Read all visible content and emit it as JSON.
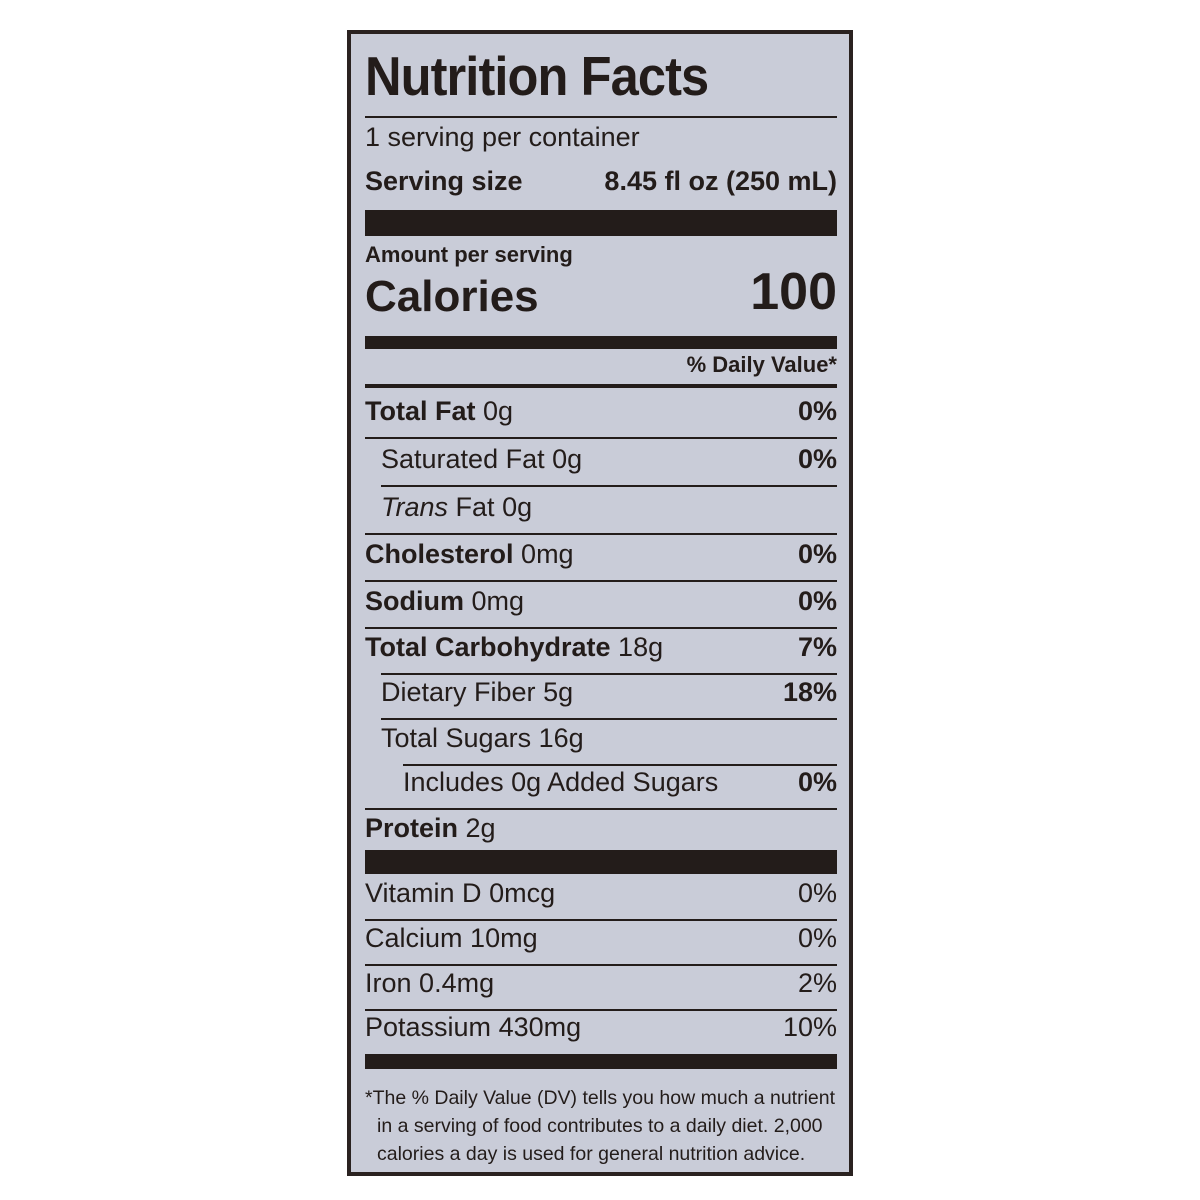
{
  "title": "Nutrition Facts",
  "servings_per_container": "1 serving per container",
  "serving_size": {
    "label": "Serving size",
    "value": "8.45 fl oz (250 mL)"
  },
  "amount_per_serving": "Amount per serving",
  "calories": {
    "label": "Calories",
    "value": "100"
  },
  "daily_value_header": "% Daily Value*",
  "nutrients": [
    {
      "label": "Total Fat",
      "amount": "0g",
      "dv": "0%"
    },
    {
      "label": "Saturated Fat",
      "amount": "0g",
      "dv": "0%"
    },
    {
      "label": "Trans",
      "label_suffix": "Fat",
      "amount": "0g",
      "dv": ""
    },
    {
      "label": "Cholesterol",
      "amount": "0mg",
      "dv": "0%"
    },
    {
      "label": "Sodium",
      "amount": "0mg",
      "dv": "0%"
    },
    {
      "label": "Total Carbohydrate",
      "amount": "18g",
      "dv": "7%"
    },
    {
      "label": "Dietary Fiber",
      "amount": "5g",
      "dv": "18%"
    },
    {
      "label": "Total Sugars",
      "amount": "16g",
      "dv": ""
    },
    {
      "label": "Includes 0g Added Sugars",
      "amount": "",
      "dv": "0%"
    },
    {
      "label": "Protein",
      "amount": "2g",
      "dv": ""
    }
  ],
  "vitamins": [
    {
      "label": "Vitamin D",
      "amount": "0mcg",
      "dv": "0%"
    },
    {
      "label": "Calcium",
      "amount": "10mg",
      "dv": "0%"
    },
    {
      "label": "Iron",
      "amount": "0.4mg",
      "dv": "2%"
    },
    {
      "label": "Potassium",
      "amount": "430mg",
      "dv": "10%"
    }
  ],
  "footnote": [
    "*The % Daily Value (DV) tells you how much a nutrient",
    "in a serving of food contributes to a daily diet. 2,000",
    "calories a day is used for general nutrition advice."
  ]
}
